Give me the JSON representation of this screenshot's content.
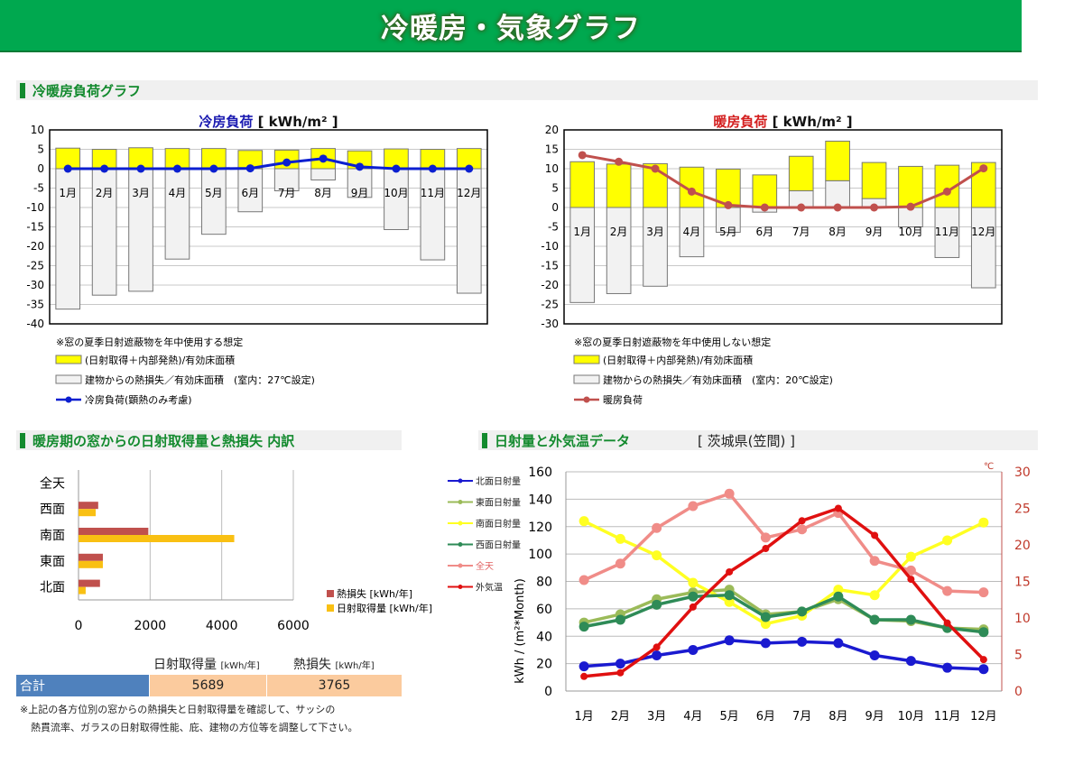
{
  "title": "冷暖房・気象グラフ",
  "sections": {
    "loads": "冷暖房負荷グラフ",
    "windows": "暖房期の窓からの日射取得量と熱損失 内訳",
    "weather": "日射量と外気温データ",
    "location": "[ 茨城県(笠間) ]"
  },
  "chart_data": [
    {
      "type": "bar",
      "id": "cooling",
      "title": "冷房負荷",
      "unit": "[ kWh/m² ]",
      "title_color": "#1a1ab0",
      "categories": [
        "1月",
        "2月",
        "3月",
        "4月",
        "5月",
        "6月",
        "7月",
        "8月",
        "9月",
        "10月",
        "11月",
        "12月"
      ],
      "ylim": [
        -40,
        10
      ],
      "yticks": [
        10,
        5,
        0,
        -5,
        -10,
        -15,
        -20,
        -25,
        -30,
        -35,
        -40
      ],
      "series": [
        {
          "name": "(日射取得＋内部発熱)/有効床面積",
          "type": "bar",
          "color": "#ffff00",
          "values": [
            5.3,
            5.0,
            5.4,
            5.2,
            5.2,
            4.7,
            4.8,
            5.2,
            4.6,
            5.1,
            5.0,
            5.2
          ]
        },
        {
          "name": "建物からの熱損失／有効床面積　(室内：27℃設定)",
          "type": "bar",
          "color": "#f2f2f2",
          "values": [
            -36.2,
            -32.6,
            -31.6,
            -23.3,
            -16.9,
            -11.1,
            -5.7,
            -2.9,
            -7.4,
            -15.7,
            -23.5,
            -32.1
          ]
        },
        {
          "name": "冷房負荷(顕熱のみ考慮)",
          "type": "line",
          "color": "#0b1fd0",
          "values": [
            0,
            0,
            0,
            0,
            0,
            0.1,
            1.6,
            2.6,
            0.5,
            0,
            0,
            0
          ]
        }
      ],
      "note": "※窓の夏季日射遮蔽物を年中使用する想定"
    },
    {
      "type": "bar",
      "id": "heating",
      "title": "暖房負荷",
      "unit": "[ kWh/m² ]",
      "title_color": "#d42020",
      "categories": [
        "1月",
        "2月",
        "3月",
        "4月",
        "5月",
        "6月",
        "7月",
        "8月",
        "9月",
        "10月",
        "11月",
        "12月"
      ],
      "ylim": [
        -30,
        20
      ],
      "yticks": [
        20,
        15,
        10,
        5,
        0,
        -5,
        -10,
        -15,
        -20,
        -25,
        -30
      ],
      "series": [
        {
          "name": "(日射取得＋内部発熱)/有効床面積",
          "type": "bar",
          "color": "#ffff00",
          "values": [
            11.8,
            11.2,
            11.3,
            10.4,
            9.9,
            8.4,
            8.9,
            10.2,
            9.3,
            10.6,
            10.9,
            11.6
          ]
        },
        {
          "name": "建物からの熱損失／有効床面積　(室内：20℃設定)",
          "type": "bar",
          "color": "#f2f2f2",
          "values": [
            -24.5,
            -22.2,
            -20.3,
            -12.7,
            -6.4,
            -1.2,
            4.3,
            6.9,
            2.3,
            -5.0,
            -12.9,
            -20.7
          ]
        },
        {
          "name": "暖房負荷",
          "type": "line",
          "color": "#c0504d",
          "values": [
            13.5,
            11.8,
            10.0,
            4.1,
            0.6,
            0,
            0,
            0,
            0,
            0.2,
            4.1,
            10.1
          ]
        }
      ],
      "note": "※窓の夏季日射遮蔽物を年中使用しない想定"
    },
    {
      "type": "bar",
      "id": "windows",
      "orientation": "horizontal",
      "categories": [
        "全天",
        "西面",
        "南面",
        "東面",
        "北面"
      ],
      "xlim": [
        0,
        6000
      ],
      "xticks": [
        0,
        2000,
        4000,
        6000
      ],
      "series": [
        {
          "name": "熱損失 [kWh/年]",
          "color": "#c0504d",
          "values": [
            0,
            550,
            1950,
            680,
            600
          ]
        },
        {
          "name": "日射取得量 [kWh/年]",
          "color": "#f9c013",
          "values": [
            0,
            480,
            4350,
            680,
            200
          ]
        }
      ]
    },
    {
      "type": "line",
      "id": "weather",
      "categories": [
        "1月",
        "2月",
        "3月",
        "4月",
        "5月",
        "6月",
        "7月",
        "8月",
        "9月",
        "10月",
        "11月",
        "12月"
      ],
      "ylabel": "kWh / (m²*Month)",
      "ylim": [
        0,
        160
      ],
      "yticks": [
        0,
        20,
        40,
        60,
        80,
        100,
        120,
        140,
        160
      ],
      "y2label": "℃",
      "y2lim": [
        0,
        30
      ],
      "y2ticks": [
        0,
        5,
        10,
        15,
        20,
        25,
        30
      ],
      "series": [
        {
          "name": "北面日射量",
          "color": "#1a1ad0",
          "axis": "left",
          "values": [
            18,
            20,
            26,
            30,
            37,
            35,
            36,
            35,
            26,
            22,
            17,
            16
          ]
        },
        {
          "name": "東面日射量",
          "color": "#9bbb59",
          "axis": "left",
          "values": [
            50,
            56,
            67,
            72,
            74,
            56,
            58,
            67,
            52,
            51,
            46,
            45
          ]
        },
        {
          "name": "南面日射量",
          "color": "#ffff22",
          "axis": "left",
          "values": [
            124,
            111,
            99,
            79,
            65,
            49,
            55,
            74,
            70,
            98,
            110,
            123
          ]
        },
        {
          "name": "西面日射量",
          "color": "#2e8b57",
          "axis": "left",
          "values": [
            47,
            52,
            63,
            69,
            70,
            54,
            58,
            69,
            52,
            52,
            46,
            43
          ]
        },
        {
          "name": "全天",
          "color": "#f08c88",
          "axis": "left",
          "values": [
            81,
            93,
            119,
            135,
            144,
            112,
            118,
            130,
            95,
            88,
            73,
            72
          ]
        },
        {
          "name": "外気温",
          "color": "#e01010",
          "axis": "right",
          "values": [
            2,
            2.5,
            6,
            11.5,
            16.3,
            19.5,
            23.3,
            25,
            21.3,
            15.3,
            9.3,
            4.3
          ]
        }
      ]
    }
  ],
  "totals": {
    "gain_header": "日射取得量",
    "loss_header": "熱損失",
    "unit": "[kWh/年]",
    "label": "合計",
    "gain": "5689",
    "loss": "3765"
  },
  "footnote": [
    "※上記の各方位別の窓からの熱損失と日射取得量を確認して、サッシの",
    "熱貫流率、ガラスの日射取得性能、庇、建物の方位等を調整して下さい。"
  ]
}
